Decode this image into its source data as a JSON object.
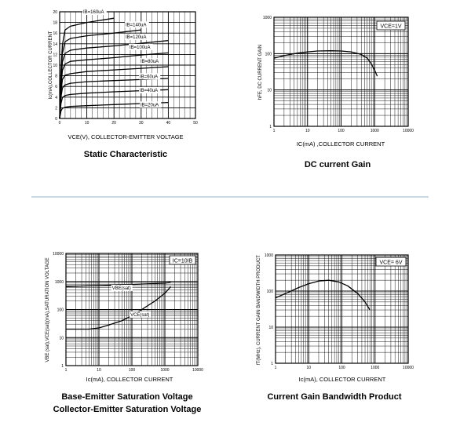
{
  "chart_data": [
    {
      "type": "line",
      "caption": "Static Characteristic",
      "xlabel": "VCE(V), COLLECTOR-EMITTER VOLTAGE",
      "ylabel": "Ic(mA),COLLECTOR CURRENT",
      "xlim": [
        0,
        50
      ],
      "ylim": [
        0,
        20
      ],
      "xticks": [
        "0",
        "10",
        "20",
        "30",
        "40",
        "50"
      ],
      "yticks": [
        "0",
        "2",
        "4",
        "6",
        "8",
        "10",
        "12",
        "14",
        "16",
        "18",
        "20"
      ],
      "series": [
        {
          "name": "IB=20uA",
          "x": [
            0,
            0.5,
            1,
            2,
            4,
            10,
            20,
            30,
            40
          ],
          "y": [
            0,
            1.4,
            1.9,
            2.1,
            2.25,
            2.4,
            2.6,
            2.8,
            3.0
          ]
        },
        {
          "name": "IB=40uA",
          "x": [
            0,
            0.5,
            1,
            2,
            4,
            10,
            20,
            30,
            40
          ],
          "y": [
            0,
            2.8,
            3.9,
            4.3,
            4.5,
            4.75,
            5.0,
            5.2,
            5.4
          ]
        },
        {
          "name": "IB=60uA",
          "x": [
            0,
            0.5,
            1,
            2,
            4,
            10,
            20,
            30,
            40
          ],
          "y": [
            0,
            4.0,
            5.7,
            6.3,
            6.6,
            6.9,
            7.1,
            7.3,
            7.5
          ]
        },
        {
          "name": "IB=80uA",
          "x": [
            0,
            0.5,
            1,
            2,
            4,
            10,
            20,
            30,
            40
          ],
          "y": [
            0,
            5.0,
            7.3,
            8.1,
            8.4,
            8.8,
            9.1,
            9.4,
            9.7
          ]
        },
        {
          "name": "IB=100uA",
          "x": [
            0,
            0.5,
            1,
            2,
            4,
            10,
            20,
            30,
            40
          ],
          "y": [
            0,
            6.0,
            9.0,
            10.2,
            10.7,
            11.0,
            11.4,
            11.9,
            12.3
          ]
        },
        {
          "name": "IB=120uA",
          "x": [
            0,
            0.5,
            1,
            2,
            4,
            10,
            20,
            30,
            40
          ],
          "y": [
            0,
            7.0,
            10.6,
            12.2,
            12.8,
            13.2,
            13.6,
            14.1,
            14.6
          ]
        },
        {
          "name": "IB=140uA",
          "x": [
            0,
            0.5,
            1,
            2,
            4,
            10,
            20,
            30
          ],
          "y": [
            0,
            8.0,
            12.2,
            14.4,
            15.0,
            15.5,
            16.0,
            16.6
          ]
        },
        {
          "name": "IB=160uA",
          "x": [
            0,
            0.5,
            1,
            2,
            4,
            10,
            20
          ],
          "y": [
            0,
            9.0,
            13.8,
            16.6,
            17.3,
            18.0,
            18.8
          ]
        }
      ],
      "legend_labels": [
        "IB=160uA",
        "IB=140uA",
        "IB=120uA",
        "IB=100uA",
        "IB=80uA",
        "IB=60uA",
        "IB=40uA",
        "IB=20uA"
      ]
    },
    {
      "type": "line",
      "caption": "DC current Gain",
      "xlabel": "IC(mA) ,COLLECTOR CURRENT",
      "ylabel": "hFE, DC CURRENT GAIN",
      "xscale": "log",
      "yscale": "log",
      "xlim": [
        1,
        10000
      ],
      "ylim": [
        1,
        1000
      ],
      "xticks": [
        "1",
        "10",
        "100",
        "1000",
        "10000"
      ],
      "yticks": [
        "1",
        "10",
        "100",
        "1000"
      ],
      "annotation": "VCE=1V",
      "series": [
        {
          "x": [
            1,
            2,
            5,
            10,
            20,
            50,
            100,
            200,
            400,
            600,
            800,
            1000,
            1200
          ],
          "y": [
            75,
            88,
            103,
            112,
            118,
            120,
            118,
            112,
            95,
            75,
            52,
            35,
            24
          ]
        }
      ]
    },
    {
      "type": "line",
      "caption_lines": [
        "Base-Emitter Saturation Voltage",
        "Collector-Emitter Saturation Voltage"
      ],
      "xlabel": "Ic(mA), COLLECTOR CURRENT",
      "ylabel": "VBE (sat),VCE(sat)(mA),SATURATION VOLTAGE",
      "xscale": "log",
      "yscale": "log",
      "xlim": [
        1,
        10000
      ],
      "ylim": [
        1,
        10000
      ],
      "xticks": [
        "1",
        "10",
        "100",
        "1000",
        "10000"
      ],
      "yticks": [
        "1",
        "10",
        "100",
        "1000",
        "10000"
      ],
      "annotation": "IC=10IB",
      "series": [
        {
          "name": "VBE(sat)",
          "x": [
            1,
            10,
            100,
            1000,
            1500
          ],
          "y": [
            660,
            720,
            780,
            870,
            920
          ]
        },
        {
          "name": "VCE(sat)",
          "x": [
            1,
            5,
            10,
            20,
            50,
            100,
            200,
            500,
            1000,
            1500
          ],
          "y": [
            20,
            20,
            22,
            28,
            40,
            60,
            100,
            200,
            380,
            650
          ]
        }
      ]
    },
    {
      "type": "line",
      "caption": "Current Gain Bandwidth Product",
      "xlabel": "Ic(mA), COLLECTOR CURRENT",
      "ylabel": "fT(MHz), CURRENT GAIN BANDWIDTH PRODUCT",
      "xscale": "log",
      "yscale": "log",
      "xlim": [
        1,
        10000
      ],
      "ylim": [
        1,
        1000
      ],
      "xticks": [
        "1",
        "10",
        "100",
        "1000",
        "10000"
      ],
      "yticks": [
        "1",
        "10",
        "100",
        "1000"
      ],
      "annotation": "VCE= 6V",
      "series": [
        {
          "x": [
            1,
            2,
            5,
            10,
            20,
            40,
            80,
            150,
            300,
            500,
            700
          ],
          "y": [
            65,
            85,
            125,
            160,
            190,
            200,
            180,
            140,
            85,
            50,
            30
          ]
        }
      ]
    }
  ]
}
